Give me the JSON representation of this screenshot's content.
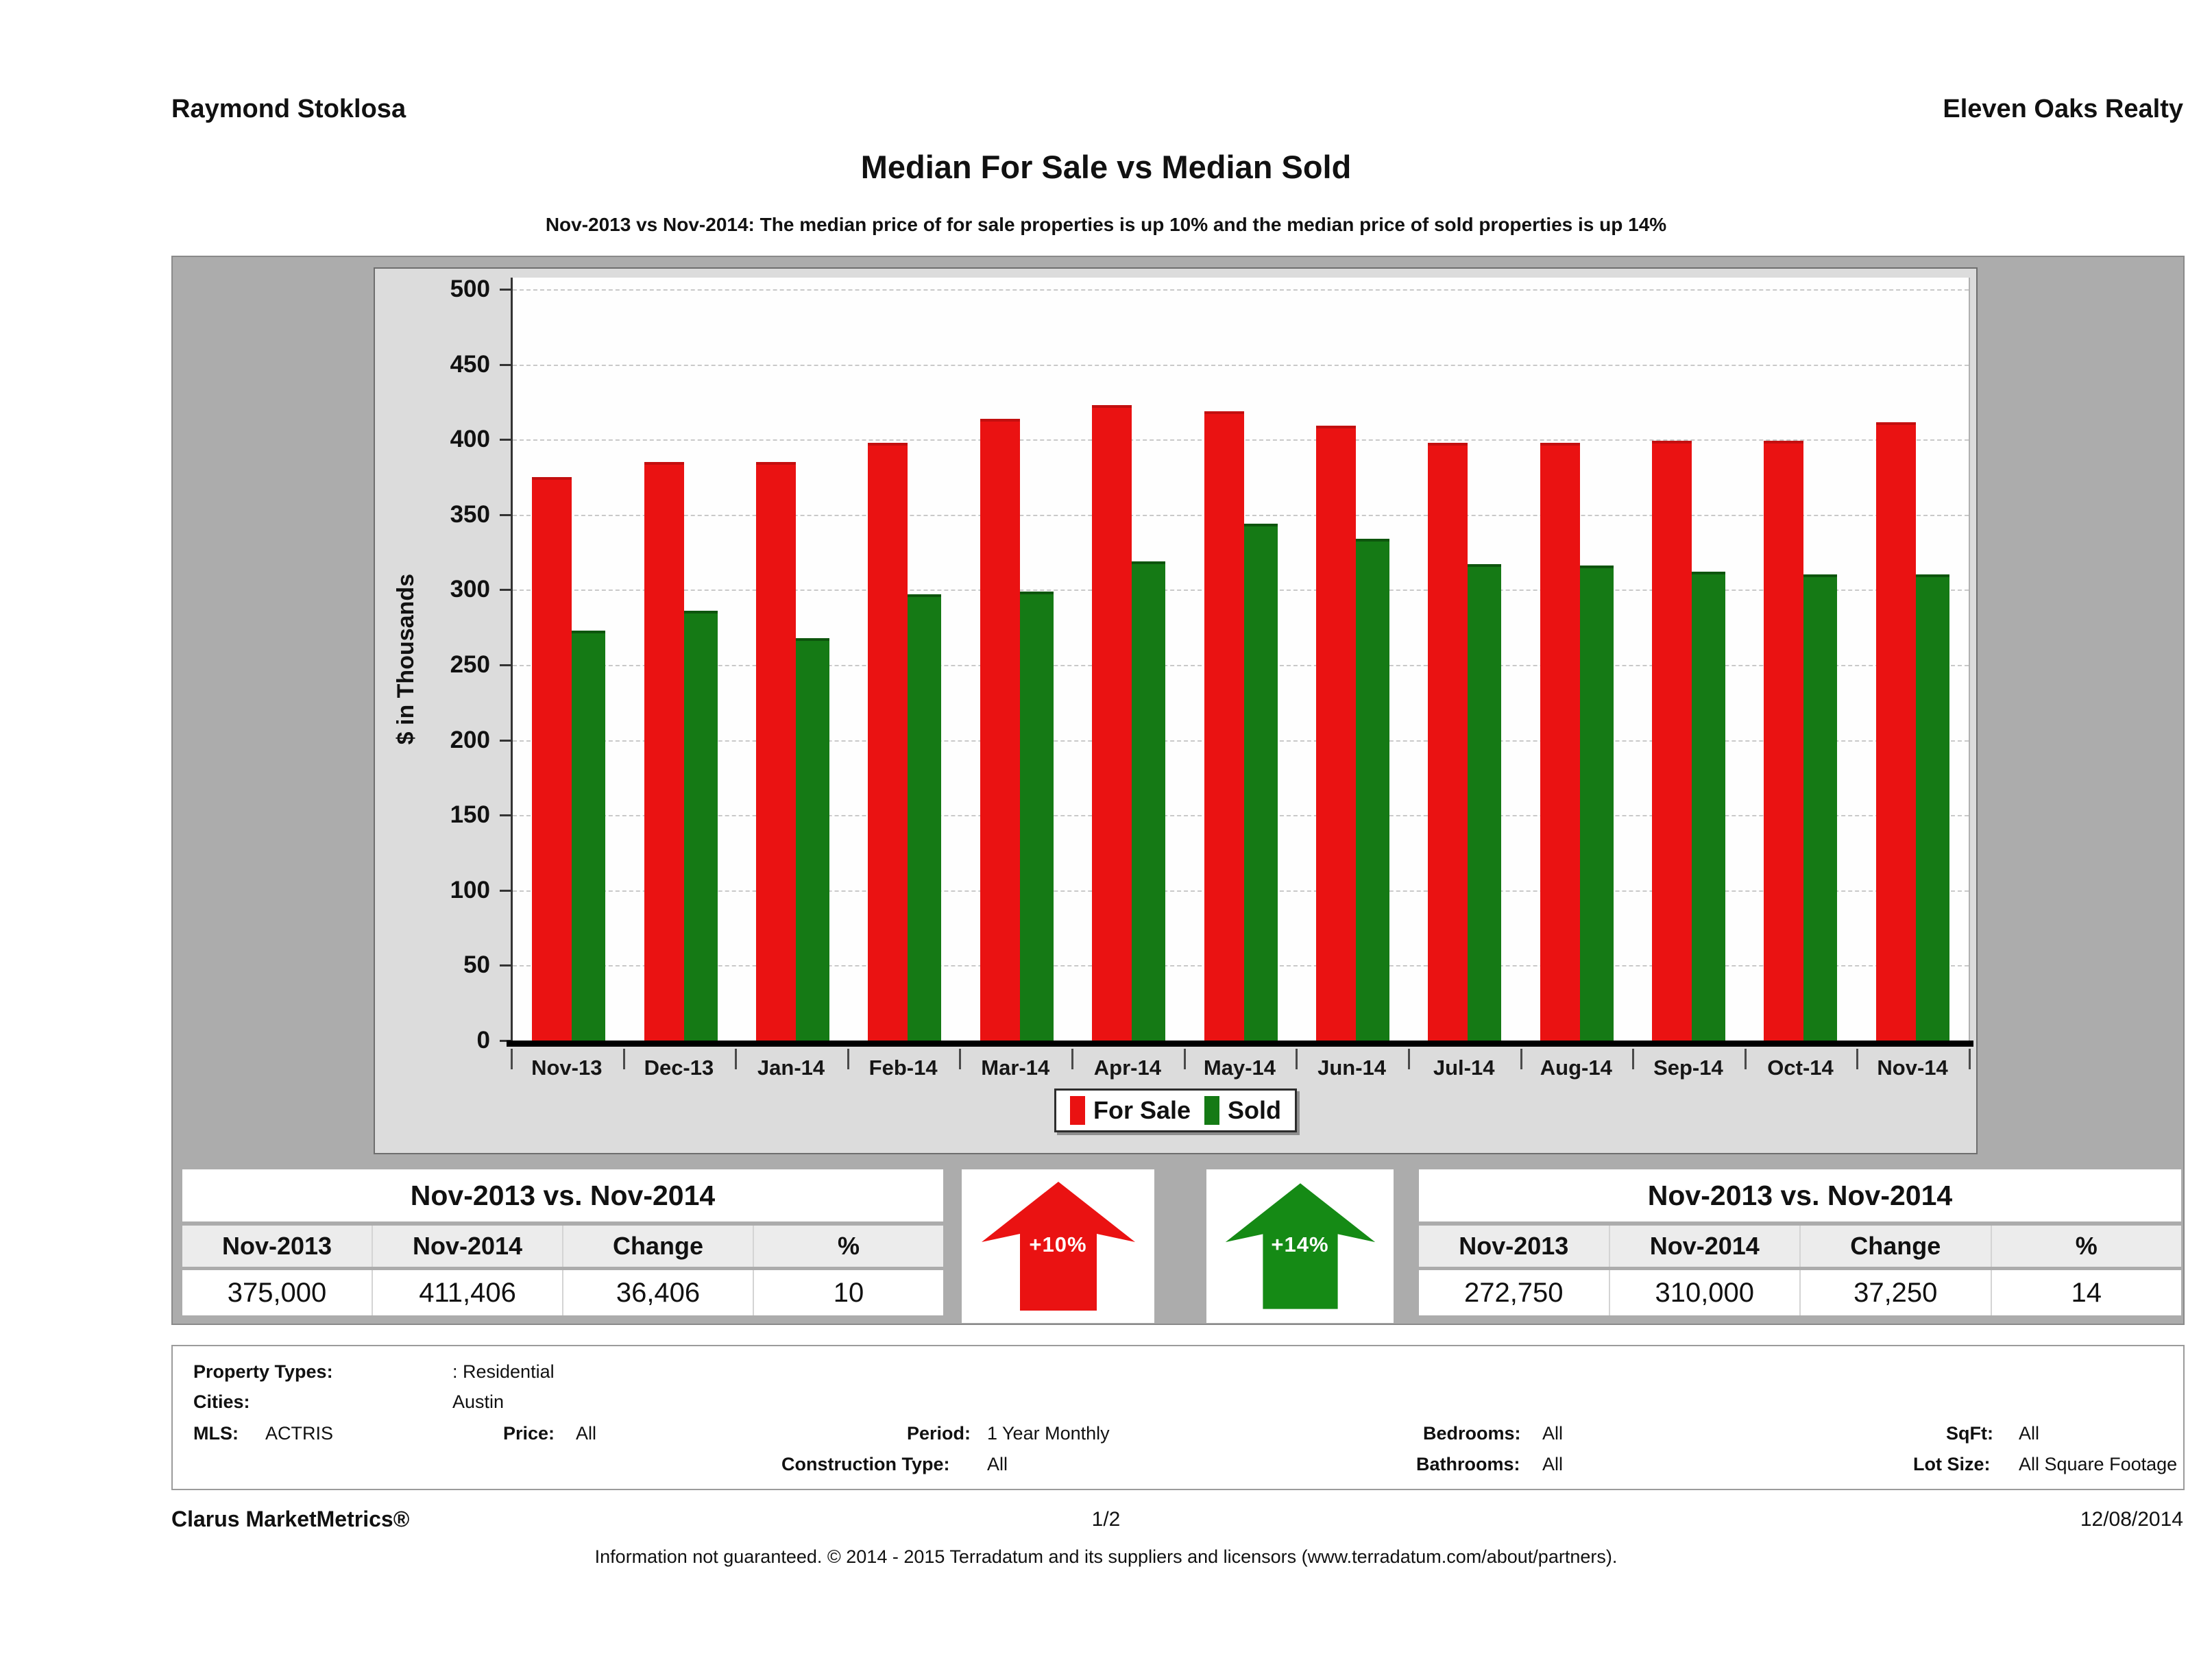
{
  "header": {
    "agent": "Raymond Stoklosa",
    "brokerage": "Eleven Oaks Realty"
  },
  "chart_data": {
    "type": "bar",
    "title": "Median For Sale vs Median Sold",
    "subtitle": "Nov-2013 vs Nov-2014: The median price of for sale properties is up 10% and the median price of sold properties is up 14%",
    "ylabel": "$ in Thousands",
    "ylim": [
      0,
      500
    ],
    "ytick_step": 50,
    "grid": "horizontal-dashed",
    "legend_position": "bottom-center",
    "units": "thousands of dollars",
    "categories": [
      "Nov-13",
      "Dec-13",
      "Jan-14",
      "Feb-14",
      "Mar-14",
      "Apr-14",
      "May-14",
      "Jun-14",
      "Jul-14",
      "Aug-14",
      "Sep-14",
      "Oct-14",
      "Nov-14"
    ],
    "series": [
      {
        "name": "For Sale",
        "color": "#ea1212",
        "cap_color": "#c30f0f",
        "values": [
          375,
          385,
          385,
          398,
          414,
          423,
          419,
          409,
          398,
          398,
          399,
          399,
          411.4
        ]
      },
      {
        "name": "Sold",
        "color": "#157a15",
        "cap_color": "#0d550d",
        "values": [
          272.8,
          286,
          268,
          297,
          299,
          319,
          344,
          334,
          317,
          316,
          312,
          310,
          310
        ]
      }
    ]
  },
  "summary_tables": {
    "left": {
      "title": "Nov-2013 vs. Nov-2014",
      "columns": [
        "Nov-2013",
        "Nov-2014",
        "Change",
        "%"
      ],
      "values": [
        "375,000",
        "411,406",
        "36,406",
        "10"
      ]
    },
    "right": {
      "title": "Nov-2013 vs. Nov-2014",
      "columns": [
        "Nov-2013",
        "Nov-2014",
        "Change",
        "%"
      ],
      "values": [
        "272,750",
        "310,000",
        "37,250",
        "14"
      ]
    }
  },
  "arrows": {
    "for_sale": {
      "label": "+10%",
      "color": "#ea1212"
    },
    "sold": {
      "label": "+14%",
      "color": "#158a15"
    }
  },
  "details": {
    "property_types_label": "Property Types:",
    "property_types_value": ": Residential",
    "cities_label": "Cities:",
    "cities_value": "Austin",
    "mls_label": "MLS:",
    "mls_value": "ACTRIS",
    "price_label": "Price:",
    "price_value": "All",
    "period_label": "Period:",
    "period_value": "1 Year Monthly",
    "bedrooms_label": "Bedrooms:",
    "bedrooms_value": "All",
    "sqft_label": "SqFt:",
    "sqft_value": "All",
    "construction_label": "Construction Type:",
    "construction_value": "All",
    "bathrooms_label": "Bathrooms:",
    "bathrooms_value": "All",
    "lot_label": "Lot Size:",
    "lot_value": "All Square Footage"
  },
  "footer": {
    "product": "Clarus MarketMetrics®",
    "page_number": "1/2",
    "date": "12/08/2014",
    "disclaimer": "Information not guaranteed. © 2014 - 2015 Terradatum and its suppliers and licensors (www.terradatum.com/about/partners)."
  }
}
